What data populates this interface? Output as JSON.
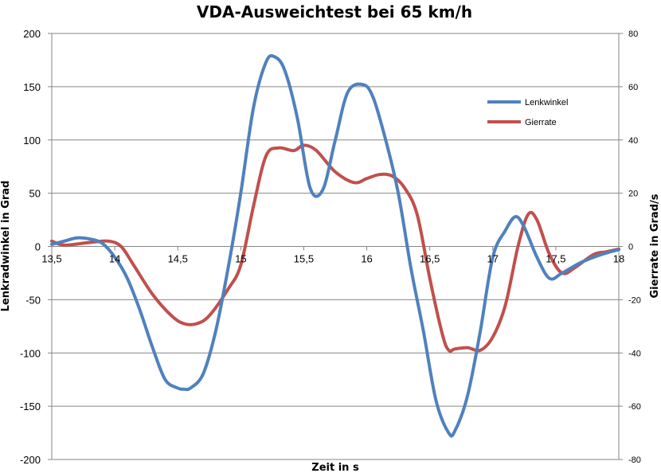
{
  "chart_data": {
    "type": "line",
    "title": "VDA-Ausweichtest bei 65 km/h",
    "xlabel": "Zeit in s",
    "ylabel": "Lenkradwinkel in Grad",
    "y2label": "Gierrate in Grad/s",
    "xlim": [
      13.5,
      18
    ],
    "ylim": [
      -200,
      200
    ],
    "y2lim": [
      -80,
      80
    ],
    "x_ticks": [
      "13,5",
      "14",
      "14,5",
      "15",
      "15,5",
      "16",
      "16,5",
      "17",
      "17,5",
      "18"
    ],
    "x_tick_values": [
      13.5,
      14,
      14.5,
      15,
      15.5,
      16,
      16.5,
      17,
      17.5,
      18
    ],
    "y_ticks": [
      "200",
      "150",
      "100",
      "50",
      "0",
      "-50",
      "-100",
      "-150",
      "-200"
    ],
    "y_tick_values": [
      200,
      150,
      100,
      50,
      0,
      -50,
      -100,
      -150,
      -200
    ],
    "y2_ticks": [
      "80",
      "60",
      "40",
      "20",
      "0",
      "-20",
      "-40",
      "-60",
      "-80"
    ],
    "y2_tick_values": [
      80,
      60,
      40,
      20,
      0,
      -20,
      -40,
      -60,
      -80
    ],
    "grid": "horizontal",
    "legend_position": "top-right",
    "series": [
      {
        "name": "Lenkwinkel",
        "axis": "left",
        "color": "#4F81BD",
        "x": [
          13.5,
          13.6,
          13.7,
          13.8,
          13.9,
          14.0,
          14.1,
          14.2,
          14.3,
          14.4,
          14.5,
          14.55,
          14.6,
          14.7,
          14.8,
          14.9,
          15.0,
          15.1,
          15.2,
          15.27,
          15.35,
          15.45,
          15.55,
          15.65,
          15.75,
          15.85,
          15.97,
          16.05,
          16.15,
          16.25,
          16.35,
          16.45,
          16.55,
          16.65,
          16.7,
          16.8,
          16.9,
          17.0,
          17.1,
          17.18,
          17.25,
          17.35,
          17.45,
          17.55,
          17.7,
          17.85,
          18.0
        ],
        "y": [
          2,
          5,
          8,
          7,
          3,
          -10,
          -30,
          -60,
          -95,
          -125,
          -133,
          -134,
          -133,
          -120,
          -80,
          -20,
          50,
          130,
          173,
          178,
          165,
          120,
          55,
          53,
          100,
          145,
          152,
          140,
          100,
          50,
          -20,
          -80,
          -145,
          -175,
          -173,
          -140,
          -80,
          -10,
          15,
          28,
          18,
          -10,
          -30,
          -25,
          -15,
          -8,
          -3
        ]
      },
      {
        "name": "Gierrate",
        "axis": "right",
        "color": "#C0504D",
        "x": [
          13.5,
          13.6,
          13.8,
          13.95,
          14.05,
          14.15,
          14.3,
          14.45,
          14.55,
          14.65,
          14.75,
          14.9,
          15.0,
          15.1,
          15.2,
          15.3,
          15.42,
          15.5,
          15.6,
          15.75,
          15.9,
          16.0,
          16.1,
          16.2,
          16.3,
          16.4,
          16.5,
          16.6,
          16.65,
          16.7,
          16.8,
          16.9,
          17.0,
          17.1,
          17.2,
          17.28,
          17.35,
          17.45,
          17.55,
          17.65,
          17.8,
          17.9,
          18.0
        ],
        "y": [
          2,
          0.5,
          1.5,
          2,
          0,
          -7,
          -18,
          -26,
          -29,
          -29,
          -26,
          -16,
          -7,
          15,
          34,
          37,
          36,
          38,
          36,
          28,
          24,
          25.5,
          27,
          26.5,
          22,
          12,
          -12,
          -33,
          -39,
          -38.5,
          -38,
          -39,
          -34,
          -22,
          0,
          12,
          10,
          -3,
          -10,
          -8,
          -3,
          -2,
          -1
        ]
      }
    ]
  }
}
